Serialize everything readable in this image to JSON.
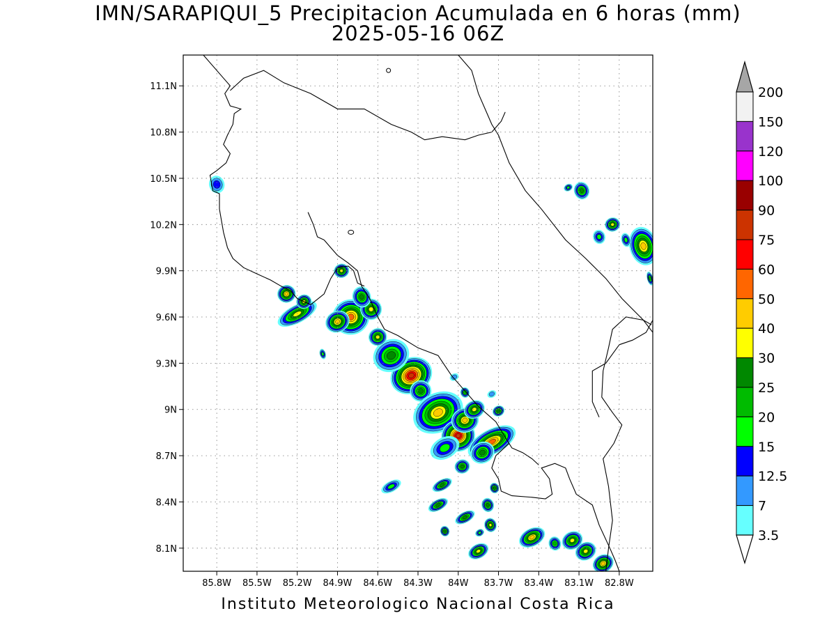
{
  "title": {
    "line1": "IMN/SARAPIQUI_5 Precipitacion Acumulada en 6 horas (mm)",
    "line2": "2025-05-16 06Z"
  },
  "footer": {
    "credit": "Instituto Meteorologico Nacional Costa Rica"
  },
  "map": {
    "lon_range": [
      -86.05,
      -82.55
    ],
    "lat_range": [
      7.95,
      11.3
    ],
    "lon_ticks": [
      {
        "value": -85.8,
        "label": "85.8W"
      },
      {
        "value": -85.5,
        "label": "85.5W"
      },
      {
        "value": -85.2,
        "label": "85.2W"
      },
      {
        "value": -84.9,
        "label": "84.9W"
      },
      {
        "value": -84.6,
        "label": "84.6W"
      },
      {
        "value": -84.3,
        "label": "84.3W"
      },
      {
        "value": -84.0,
        "label": "84W"
      },
      {
        "value": -83.7,
        "label": "83.7W"
      },
      {
        "value": -83.4,
        "label": "83.4W"
      },
      {
        "value": -83.1,
        "label": "83.1W"
      },
      {
        "value": -82.8,
        "label": "82.8W"
      }
    ],
    "lat_ticks": [
      {
        "value": 11.1,
        "label": "11.1N"
      },
      {
        "value": 10.8,
        "label": "10.8N"
      },
      {
        "value": 10.5,
        "label": "10.5N"
      },
      {
        "value": 10.2,
        "label": "10.2N"
      },
      {
        "value": 9.9,
        "label": "9.9N"
      },
      {
        "value": 9.6,
        "label": "9.6N"
      },
      {
        "value": 9.3,
        "label": "9.3N"
      },
      {
        "value": 9.0,
        "label": "9N"
      },
      {
        "value": 8.7,
        "label": "8.7N"
      },
      {
        "value": 8.4,
        "label": "8.4N"
      },
      {
        "value": 8.1,
        "label": "8.1N"
      }
    ],
    "grid": "dotted"
  },
  "colorbar": {
    "levels": [
      {
        "label": "200",
        "color": "#f2f2f2"
      },
      {
        "label": "150",
        "color": "#9933cc"
      },
      {
        "label": "120",
        "color": "#ff00ff"
      },
      {
        "label": "100",
        "color": "#990000"
      },
      {
        "label": "90",
        "color": "#cc3300"
      },
      {
        "label": "75",
        "color": "#ff0000"
      },
      {
        "label": "60",
        "color": "#ff6600"
      },
      {
        "label": "50",
        "color": "#ffcc00"
      },
      {
        "label": "40",
        "color": "#ffff00"
      },
      {
        "label": "30",
        "color": "#008800"
      },
      {
        "label": "25",
        "color": "#00bb00"
      },
      {
        "label": "20",
        "color": "#00ff00"
      },
      {
        "label": "15",
        "color": "#0000ff"
      },
      {
        "label": "12.5",
        "color": "#3399ff"
      },
      {
        "label": "7",
        "color": "#66ffff"
      },
      {
        "label": "3.5",
        "color": "#ffffff"
      }
    ],
    "top_arrow_color": "#a6a6a6",
    "bottom_arrow_color": "#ffffff"
  },
  "precip_cells": [
    {
      "lon": -84.35,
      "lat": 9.22,
      "rx": 0.14,
      "ry": 0.1,
      "max": 75
    },
    {
      "lon": -84.5,
      "lat": 9.35,
      "rx": 0.12,
      "ry": 0.09,
      "max": 25
    },
    {
      "lon": -84.6,
      "lat": 9.47,
      "rx": 0.06,
      "ry": 0.05,
      "max": 30
    },
    {
      "lon": -84.28,
      "lat": 9.12,
      "rx": 0.07,
      "ry": 0.06,
      "max": 25
    },
    {
      "lon": -84.15,
      "lat": 8.98,
      "rx": 0.17,
      "ry": 0.11,
      "max": 40
    },
    {
      "lon": -84.0,
      "lat": 8.83,
      "rx": 0.11,
      "ry": 0.09,
      "max": 75
    },
    {
      "lon": -83.75,
      "lat": 8.79,
      "rx": 0.17,
      "ry": 0.07,
      "max": 50
    },
    {
      "lon": -83.95,
      "lat": 8.93,
      "rx": 0.09,
      "ry": 0.07,
      "max": 40
    },
    {
      "lon": -83.82,
      "lat": 8.72,
      "rx": 0.08,
      "ry": 0.06,
      "max": 25
    },
    {
      "lon": -83.88,
      "lat": 9.0,
      "rx": 0.07,
      "ry": 0.05,
      "max": 30
    },
    {
      "lon": -83.97,
      "lat": 8.63,
      "rx": 0.05,
      "ry": 0.04,
      "max": 25
    },
    {
      "lon": -84.1,
      "lat": 8.75,
      "rx": 0.1,
      "ry": 0.06,
      "max": 15
    },
    {
      "lon": -84.8,
      "lat": 9.6,
      "rx": 0.12,
      "ry": 0.1,
      "max": 50
    },
    {
      "lon": -84.65,
      "lat": 9.65,
      "rx": 0.07,
      "ry": 0.06,
      "max": 30
    },
    {
      "lon": -84.72,
      "lat": 9.73,
      "rx": 0.06,
      "ry": 0.06,
      "max": 25
    },
    {
      "lon": -84.9,
      "lat": 9.57,
      "rx": 0.08,
      "ry": 0.06,
      "max": 40
    },
    {
      "lon": -85.2,
      "lat": 9.62,
      "rx": 0.14,
      "ry": 0.05,
      "max": 30
    },
    {
      "lon": -85.28,
      "lat": 9.75,
      "rx": 0.06,
      "ry": 0.05,
      "max": 40
    },
    {
      "lon": -85.15,
      "lat": 9.7,
      "rx": 0.05,
      "ry": 0.04,
      "max": 30
    },
    {
      "lon": -84.87,
      "lat": 9.9,
      "rx": 0.05,
      "ry": 0.04,
      "max": 30
    },
    {
      "lon": -85.01,
      "lat": 9.36,
      "rx": 0.02,
      "ry": 0.03,
      "max": 15
    },
    {
      "lon": -85.8,
      "lat": 10.46,
      "rx": 0.05,
      "ry": 0.05,
      "max": 12.5
    },
    {
      "lon": -83.08,
      "lat": 10.42,
      "rx": 0.05,
      "ry": 0.05,
      "max": 25
    },
    {
      "lon": -83.18,
      "lat": 10.44,
      "rx": 0.03,
      "ry": 0.02,
      "max": 15
    },
    {
      "lon": -82.85,
      "lat": 10.2,
      "rx": 0.05,
      "ry": 0.04,
      "max": 30
    },
    {
      "lon": -82.95,
      "lat": 10.12,
      "rx": 0.04,
      "ry": 0.04,
      "max": 15
    },
    {
      "lon": -82.62,
      "lat": 10.06,
      "rx": 0.09,
      "ry": 0.11,
      "max": 40
    },
    {
      "lon": -82.57,
      "lat": 9.85,
      "rx": 0.02,
      "ry": 0.04,
      "max": 20
    },
    {
      "lon": -82.75,
      "lat": 10.1,
      "rx": 0.03,
      "ry": 0.04,
      "max": 15
    },
    {
      "lon": -84.5,
      "lat": 8.5,
      "rx": 0.07,
      "ry": 0.03,
      "max": 15
    },
    {
      "lon": -84.12,
      "lat": 8.51,
      "rx": 0.07,
      "ry": 0.03,
      "max": 25
    },
    {
      "lon": -84.15,
      "lat": 8.38,
      "rx": 0.07,
      "ry": 0.03,
      "max": 25
    },
    {
      "lon": -83.95,
      "lat": 8.3,
      "rx": 0.07,
      "ry": 0.03,
      "max": 25
    },
    {
      "lon": -83.78,
      "lat": 8.38,
      "rx": 0.04,
      "ry": 0.04,
      "max": 25
    },
    {
      "lon": -83.76,
      "lat": 8.25,
      "rx": 0.04,
      "ry": 0.04,
      "max": 30
    },
    {
      "lon": -83.73,
      "lat": 8.49,
      "rx": 0.03,
      "ry": 0.03,
      "max": 25
    },
    {
      "lon": -83.84,
      "lat": 8.2,
      "rx": 0.03,
      "ry": 0.02,
      "max": 15
    },
    {
      "lon": -84.1,
      "lat": 8.21,
      "rx": 0.03,
      "ry": 0.03,
      "max": 25
    },
    {
      "lon": -83.85,
      "lat": 8.08,
      "rx": 0.07,
      "ry": 0.04,
      "max": 30
    },
    {
      "lon": -83.45,
      "lat": 8.17,
      "rx": 0.09,
      "ry": 0.05,
      "max": 40
    },
    {
      "lon": -83.15,
      "lat": 8.15,
      "rx": 0.07,
      "ry": 0.05,
      "max": 30
    },
    {
      "lon": -83.05,
      "lat": 8.08,
      "rx": 0.07,
      "ry": 0.05,
      "max": 30
    },
    {
      "lon": -82.92,
      "lat": 8.0,
      "rx": 0.07,
      "ry": 0.05,
      "max": 40
    },
    {
      "lon": -83.28,
      "lat": 8.13,
      "rx": 0.04,
      "ry": 0.04,
      "max": 20
    },
    {
      "lon": -83.95,
      "lat": 9.11,
      "rx": 0.03,
      "ry": 0.03,
      "max": 20
    },
    {
      "lon": -83.75,
      "lat": 9.1,
      "rx": 0.03,
      "ry": 0.02,
      "max": 7
    },
    {
      "lon": -83.7,
      "lat": 8.99,
      "rx": 0.04,
      "ry": 0.03,
      "max": 25
    },
    {
      "lon": -84.03,
      "lat": 9.21,
      "rx": 0.03,
      "ry": 0.02,
      "max": 7
    }
  ]
}
